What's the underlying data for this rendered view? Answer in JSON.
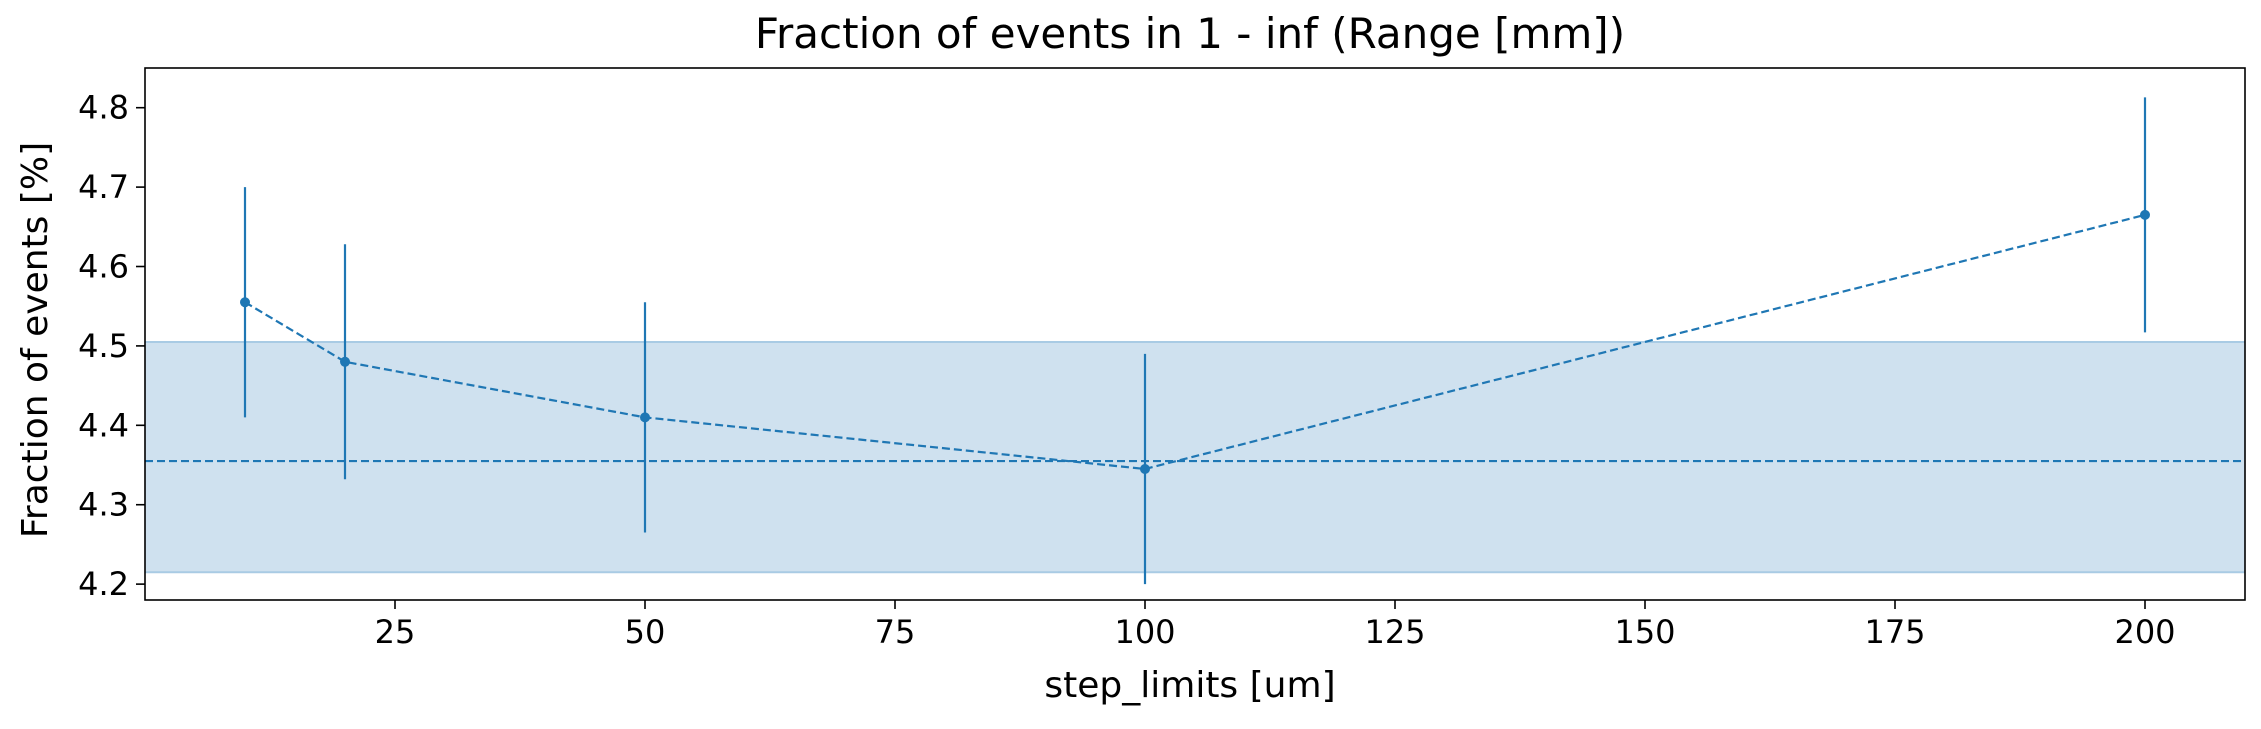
{
  "chart_data": {
    "type": "line",
    "title": "Fraction of events in 1 - inf (Range [mm])",
    "xlabel": "step_limits [um]",
    "ylabel": "Fraction of events [%]",
    "xlim": [
      0,
      210
    ],
    "ylim": [
      4.18,
      4.85
    ],
    "x_ticks": [
      25,
      50,
      75,
      100,
      125,
      150,
      175,
      200
    ],
    "y_ticks": [
      4.2,
      4.3,
      4.4,
      4.5,
      4.6,
      4.7,
      4.8
    ],
    "x_tick_labels": [
      "25",
      "50",
      "75",
      "100",
      "125",
      "150",
      "175",
      "200"
    ],
    "y_tick_labels": [
      "4.2",
      "4.3",
      "4.4",
      "4.5",
      "4.6",
      "4.7",
      "4.8"
    ],
    "grid": false,
    "series": [
      {
        "x": [
          10,
          20,
          50,
          100,
          200
        ],
        "y": [
          4.555,
          4.48,
          4.41,
          4.345,
          4.665
        ],
        "yerr": [
          0.145,
          0.148,
          0.145,
          0.145,
          0.148
        ],
        "line_style": "dashed",
        "marker": "circle"
      }
    ],
    "reference_line": {
      "y": 4.355,
      "style": "dashed"
    },
    "band": {
      "y_low": 4.215,
      "y_high": 4.505
    },
    "colors": {
      "series": "#1f77b4",
      "band_fill": "#cfe1ef",
      "band_edge": "#a9cbe4",
      "axes": "#000000"
    }
  }
}
